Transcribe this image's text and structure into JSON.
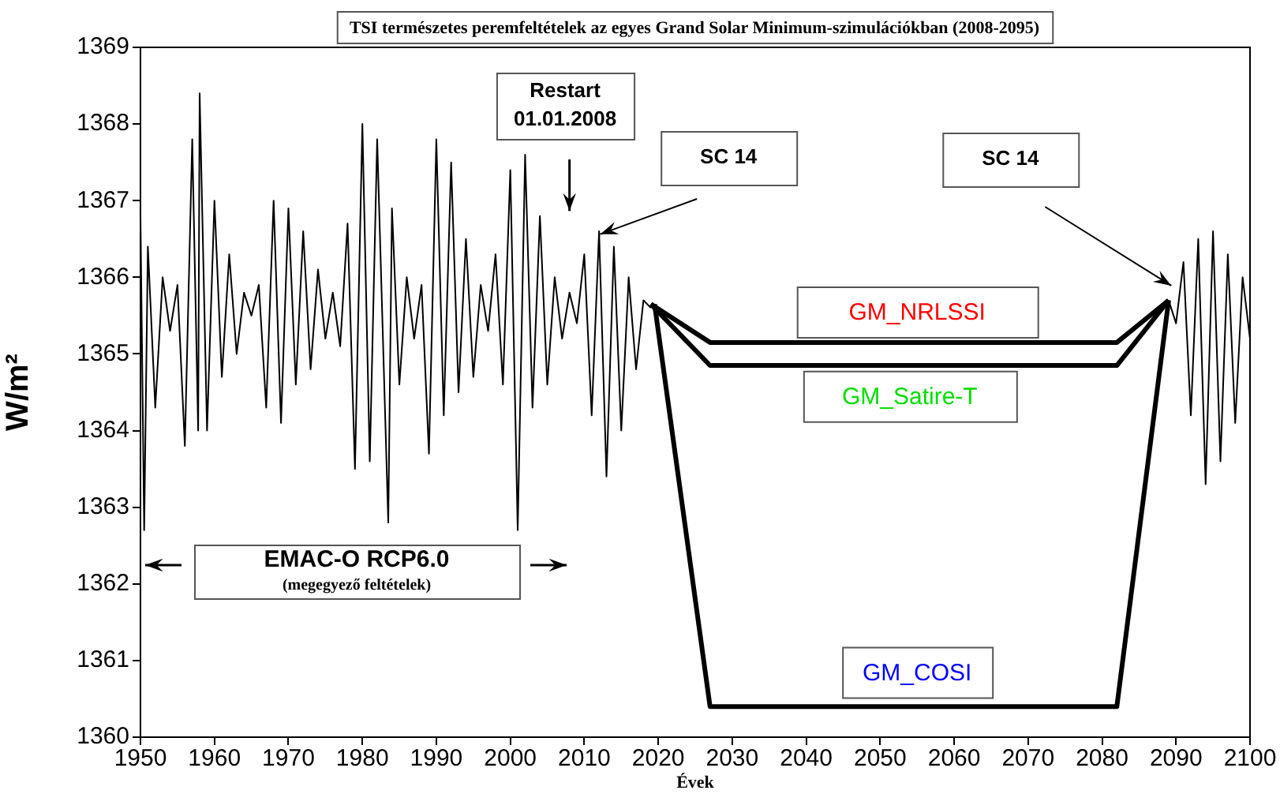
{
  "chart_data": {
    "type": "line",
    "title": "TSI természetes peremfeltételek az egyes Grand Solar Minimum-szimulációkban (2008-2095)",
    "xlabel": "Évek",
    "ylabel": "W/m²",
    "xlim": [
      1950,
      2100
    ],
    "xticks": [
      1950,
      1960,
      1970,
      1980,
      1990,
      2000,
      2010,
      2020,
      2030,
      2040,
      2050,
      2060,
      2070,
      2080,
      2090,
      2100
    ],
    "ylim": [
      1360,
      1369
    ],
    "yticks": [
      1360,
      1361,
      1362,
      1363,
      1364,
      1365,
      1366,
      1367,
      1368,
      1369
    ],
    "grid": false,
    "legend": false,
    "marker": "none",
    "line_style": "solid",
    "series": [
      {
        "color": "#000000",
        "x": [
          1950,
          1950.5,
          1951,
          1952,
          1953,
          1954,
          1955,
          1956,
          1957,
          1957.8,
          1958,
          1959,
          1960,
          1961,
          1962,
          1963,
          1964,
          1965,
          1966,
          1967,
          1968,
          1969,
          1970,
          1971,
          1972,
          1973,
          1974,
          1975,
          1976,
          1977,
          1978,
          1979,
          1980,
          1981,
          1982,
          1983.5,
          1984,
          1985,
          1986,
          1987,
          1988,
          1989,
          1990,
          1991,
          1992,
          1993,
          1994,
          1995,
          1996,
          1997,
          1998,
          1999,
          2000,
          2001,
          2002,
          2003,
          2004,
          2005,
          2006,
          2007,
          2008,
          2009,
          2010,
          2011,
          2012,
          2013,
          2014,
          2015,
          2016,
          2017,
          2018,
          2019,
          2050,
          2089,
          2090,
          2091,
          2092,
          2093,
          2094,
          2095,
          2096,
          2097,
          2098,
          2099,
          2100
        ],
        "values": [
          1366.8,
          1362.7,
          1366.4,
          1364.3,
          1366.0,
          1365.3,
          1365.9,
          1363.8,
          1367.8,
          1364.0,
          1368.4,
          1364.0,
          1367.0,
          1364.7,
          1366.3,
          1365.0,
          1365.8,
          1365.5,
          1365.9,
          1364.3,
          1367.0,
          1364.1,
          1366.9,
          1364.6,
          1366.6,
          1364.8,
          1366.1,
          1365.2,
          1365.8,
          1365.1,
          1366.7,
          1363.5,
          1368.0,
          1363.6,
          1367.8,
          1362.8,
          1366.9,
          1364.6,
          1366.0,
          1365.2,
          1365.9,
          1363.7,
          1367.8,
          1364.2,
          1367.5,
          1364.5,
          1366.5,
          1364.7,
          1365.9,
          1365.3,
          1366.3,
          1364.6,
          1367.4,
          1362.7,
          1367.6,
          1364.3,
          1366.8,
          1364.6,
          1366.0,
          1365.2,
          1365.8,
          1365.4,
          1366.3,
          1364.2,
          1366.6,
          1363.4,
          1366.4,
          1364.0,
          1366.0,
          1364.8,
          1365.7,
          1365.6,
          null,
          1365.7,
          1365.4,
          1366.2,
          1364.2,
          1366.5,
          1363.3,
          1366.6,
          1363.6,
          1366.3,
          1364.1,
          1366.0,
          1365.2
        ]
      },
      {
        "name": "GM_NRLSSI",
        "color": "#000000",
        "x": [
          2019,
          2027,
          2082,
          2089
        ],
        "values": [
          1365.65,
          1365.15,
          1365.15,
          1365.7
        ]
      },
      {
        "name": "GM_Satire-T",
        "color": "#000000",
        "x": [
          2019,
          2027,
          2082,
          2089
        ],
        "values": [
          1365.65,
          1364.85,
          1364.85,
          1365.7
        ]
      },
      {
        "name": "GM_COSI",
        "color": "#000000",
        "x": [
          2019.5,
          2027,
          2082,
          2089
        ],
        "values": [
          1365.65,
          1360.4,
          1360.4,
          1365.7
        ]
      }
    ],
    "annotations": [
      "Restart\n01.01.2008",
      "SC 14",
      "SC 14",
      "EMAC-O RCP6.0",
      "(megegyező feltételek)"
    ]
  }
}
